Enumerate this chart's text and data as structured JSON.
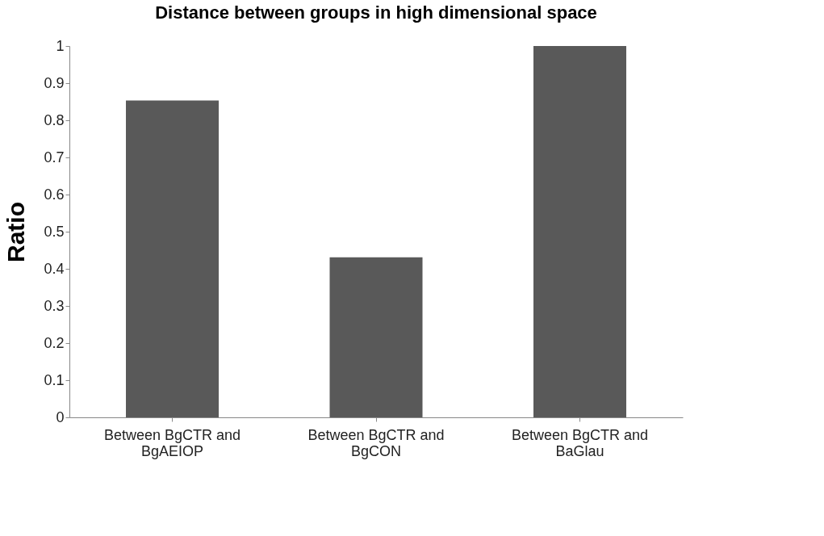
{
  "chart_data": {
    "type": "bar",
    "title": "Distance between groups in high dimensional space",
    "ylabel": "Ratio",
    "categories": [
      "Between BgCTR and BgAEIOP",
      "Between BgCTR and BgCON",
      "Between BgCTR and BaGlau"
    ],
    "values": [
      0.853,
      0.431,
      1.0
    ],
    "color": "#595959",
    "ylim": [
      0,
      1
    ],
    "yticks": [
      0,
      0.1,
      0.2,
      0.3,
      0.4,
      0.5,
      0.6,
      0.7,
      0.8,
      0.9,
      1
    ],
    "grid": false
  }
}
